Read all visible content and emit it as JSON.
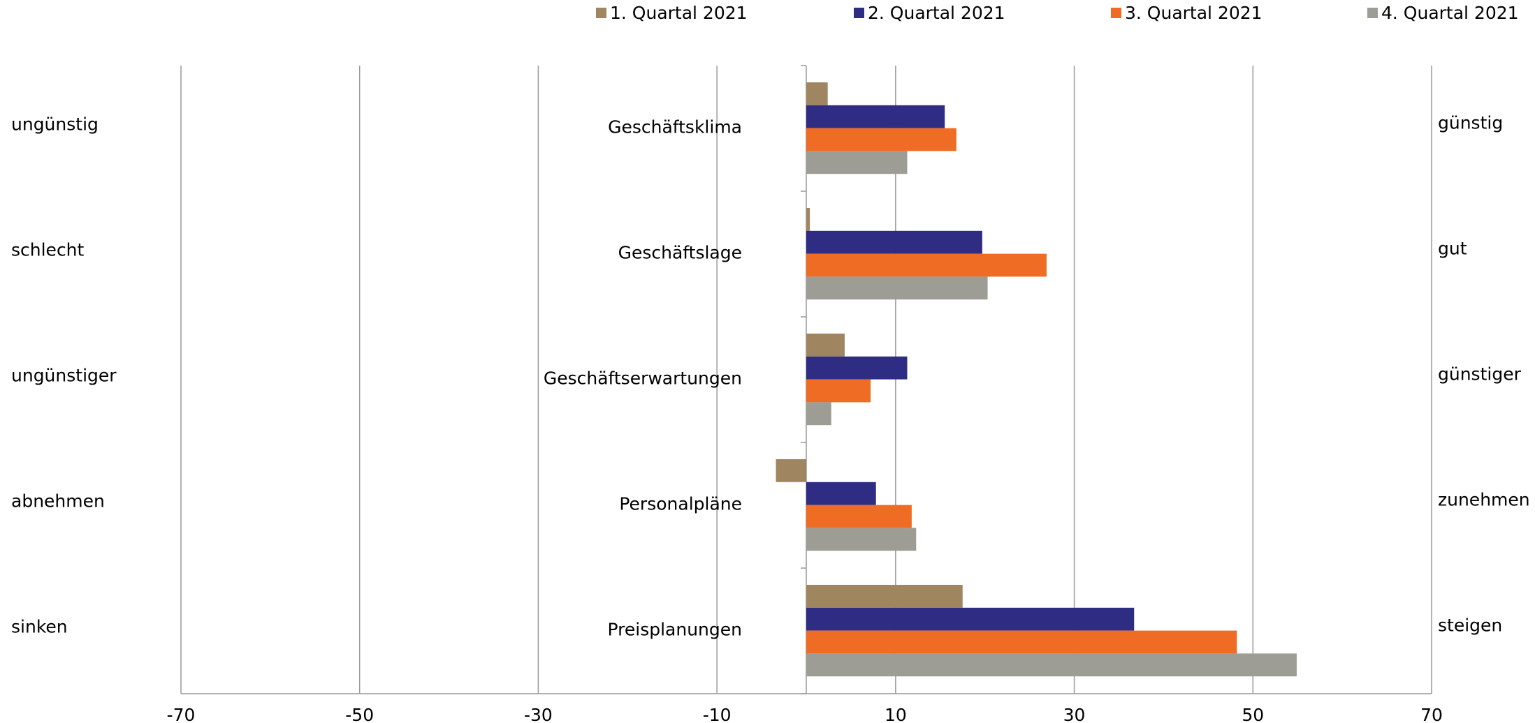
{
  "chart_data": {
    "type": "bar",
    "orientation": "horizontal",
    "categories": [
      "Geschäftsklima",
      "Geschäftslage",
      "Geschäftserwartungen",
      "Personalpläne",
      "Preisplanungen"
    ],
    "left_labels": [
      "ungünstig",
      "schlecht",
      "ungünstiger",
      "abnehmen",
      "sinken"
    ],
    "right_labels": [
      "günstig",
      "gut",
      "günstiger",
      "zunehmen",
      "steigen"
    ],
    "series": [
      {
        "name": "1. Quartal 2021",
        "color": "#a08660",
        "values": [
          2.4,
          0.4,
          4.3,
          -3.4,
          17.5
        ]
      },
      {
        "name": "2. Quartal 2021",
        "color": "#2e2d83",
        "values": [
          15.5,
          19.7,
          11.3,
          7.8,
          36.7
        ]
      },
      {
        "name": "3. Quartal 2021",
        "color": "#ee6c23",
        "values": [
          16.8,
          26.9,
          7.2,
          11.8,
          48.2
        ]
      },
      {
        "name": "4. Quartal 2021",
        "color": "#9e9d95",
        "values": [
          11.3,
          20.3,
          2.8,
          12.3,
          54.9
        ]
      }
    ],
    "xlim": [
      -70,
      70
    ],
    "xticks": [
      -70,
      -50,
      -30,
      -10,
      10,
      30,
      50,
      70
    ],
    "grid": true,
    "legend": "top"
  }
}
